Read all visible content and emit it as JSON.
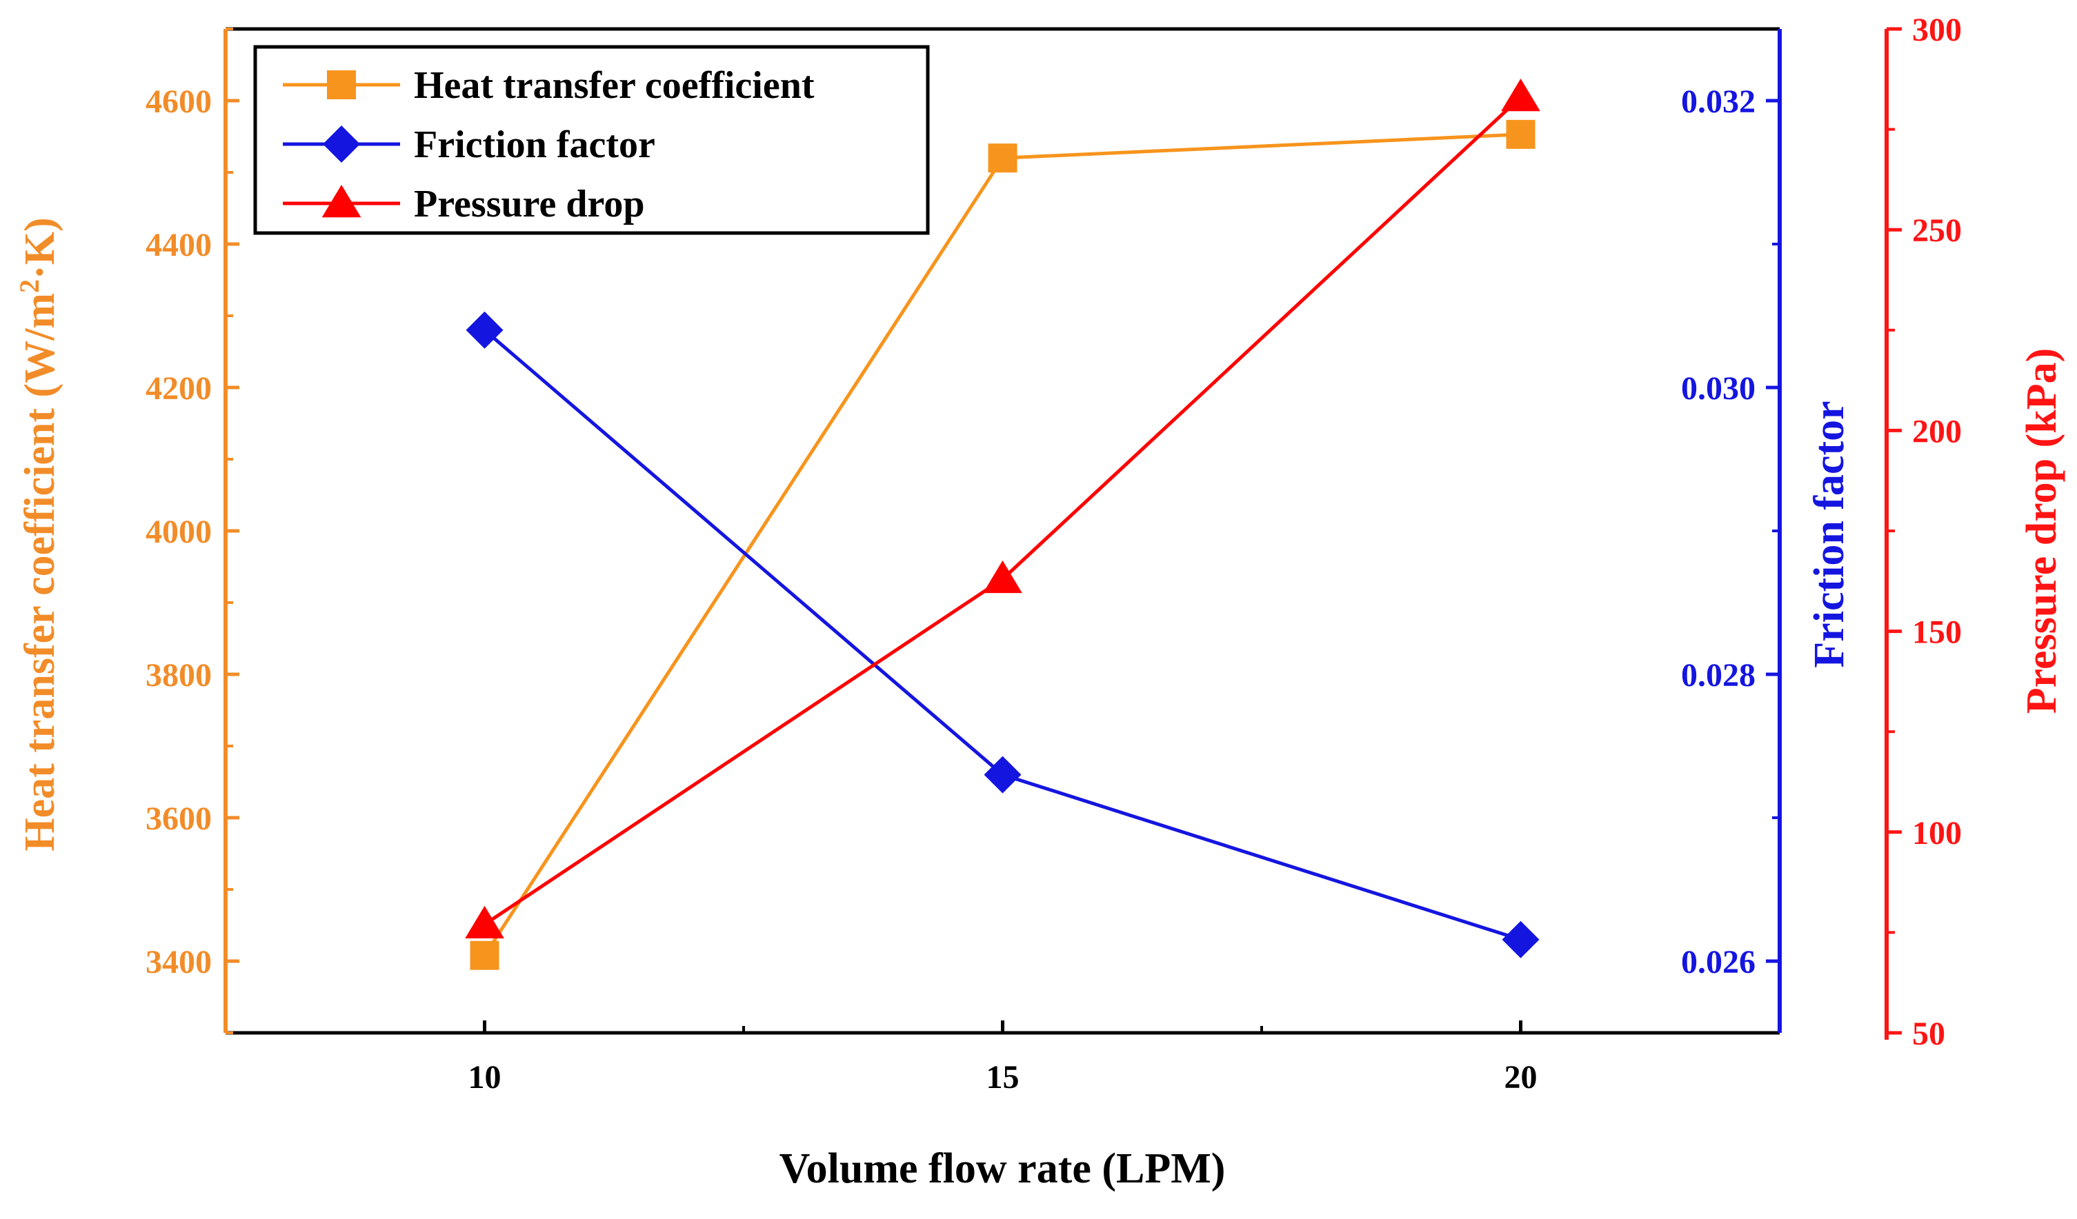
{
  "chart_data": {
    "type": "line",
    "title": "",
    "xlabel": "Volume flow rate (LPM)",
    "x": [
      10,
      15,
      20
    ],
    "xlim": [
      7.5,
      22.5
    ],
    "xticks": [
      10,
      15,
      20
    ],
    "series": [
      {
        "name": "Heat transfer coefficient",
        "axis": "left",
        "ylabel_main": "Heat transfer coefficient (W/m",
        "ylabel_sup": "2",
        "ylabel_tail": "·K)",
        "marker": "square",
        "color": "#F7941D",
        "values": [
          3408,
          4520,
          4553
        ],
        "ylim": [
          3300,
          4700
        ],
        "yticks": [
          3400,
          3600,
          3800,
          4000,
          4200,
          4400,
          4600
        ]
      },
      {
        "name": "Friction factor",
        "axis": "right1",
        "ylabel": "Friction factor",
        "marker": "diamond",
        "color": "#1515E0",
        "values": [
          0.0304,
          0.0273,
          0.02615
        ],
        "ylim": [
          0.0255,
          0.0325
        ],
        "yticks": [
          "0.026",
          "0.028",
          "0.030",
          "0.032"
        ]
      },
      {
        "name": "Pressure drop",
        "axis": "right2",
        "ylabel": "Pressure drop (kPa)",
        "marker": "triangle",
        "color": "#FF0000",
        "values": [
          77,
          163,
          283
        ],
        "ylim": [
          50,
          300
        ],
        "yticks": [
          50,
          100,
          150,
          200,
          250,
          300
        ]
      }
    ],
    "legend_position": "top-left"
  },
  "colors": {
    "orange_axis": "#F28C28",
    "blue_axis": "#1515E0",
    "red_axis": "#FF1414"
  }
}
